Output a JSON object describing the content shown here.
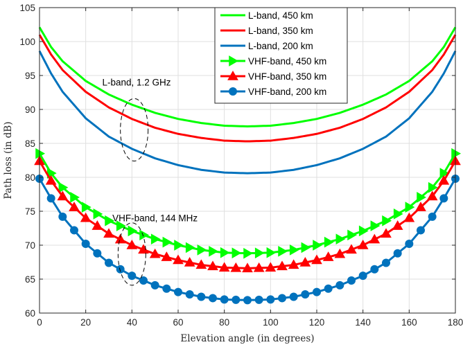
{
  "chart_data": {
    "type": "line",
    "title": "",
    "xlabel": "Elevation angle (in degrees)",
    "ylabel": "Path loss (in dB)",
    "xlim": [
      0,
      180
    ],
    "ylim": [
      60,
      105
    ],
    "xticks": [
      "0",
      "20",
      "40",
      "60",
      "80",
      "100",
      "120",
      "140",
      "160",
      "180"
    ],
    "yticks": [
      "60",
      "65",
      "70",
      "75",
      "80",
      "85",
      "90",
      "95",
      "100",
      "105"
    ],
    "grid": true,
    "legend_position": "top-center",
    "model_points_x": [
      0,
      5,
      10,
      20,
      30,
      40,
      50,
      60,
      70,
      80,
      90,
      100,
      110,
      120,
      130,
      140,
      150,
      160,
      170,
      175,
      180
    ],
    "series": [
      {
        "name": "L-band, 450 km",
        "color": "#00ff00",
        "marker": "none",
        "values": [
          102.1,
          99.2,
          97.1,
          94.2,
          92.2,
          90.7,
          89.5,
          88.6,
          88.0,
          87.6,
          87.5,
          87.6,
          88.0,
          88.6,
          89.5,
          90.7,
          92.2,
          94.2,
          97.1,
          99.2,
          102.1
        ]
      },
      {
        "name": "L-band, 350 km",
        "color": "#ff0000",
        "marker": "none",
        "values": [
          101.0,
          98.1,
          95.8,
          92.6,
          90.3,
          88.6,
          87.3,
          86.4,
          85.8,
          85.4,
          85.3,
          85.4,
          85.8,
          86.4,
          87.3,
          88.6,
          90.3,
          92.6,
          95.8,
          98.1,
          101.0
        ]
      },
      {
        "name": "L-band, 200 km",
        "color": "#0072bd",
        "marker": "none",
        "values": [
          98.6,
          95.3,
          92.6,
          88.7,
          86.0,
          84.2,
          82.8,
          81.8,
          81.1,
          80.7,
          80.6,
          80.7,
          81.1,
          81.8,
          82.8,
          84.2,
          86.0,
          88.7,
          92.6,
          95.3,
          98.6
        ]
      },
      {
        "name": "VHF-band, 450 km",
        "color": "#00ff00",
        "marker": "triangle-right",
        "values": [
          83.5,
          80.6,
          78.5,
          75.6,
          73.6,
          72.1,
          70.9,
          70.0,
          69.3,
          68.9,
          68.8,
          68.9,
          69.3,
          70.0,
          70.9,
          72.1,
          73.6,
          75.6,
          78.5,
          80.6,
          83.5
        ]
      },
      {
        "name": "VHF-band, 350 km",
        "color": "#ff0000",
        "marker": "triangle-up",
        "values": [
          82.4,
          79.5,
          77.2,
          74.0,
          71.7,
          70.0,
          68.7,
          67.8,
          67.1,
          66.7,
          66.6,
          66.7,
          67.1,
          67.8,
          68.7,
          70.0,
          71.7,
          74.0,
          77.2,
          79.5,
          82.4
        ]
      },
      {
        "name": "VHF-band, 200 km",
        "color": "#0072bd",
        "marker": "circle",
        "values": [
          79.8,
          76.9,
          74.2,
          70.2,
          67.4,
          65.5,
          64.1,
          63.1,
          62.4,
          62.0,
          61.9,
          62.0,
          62.4,
          63.1,
          64.1,
          65.5,
          67.4,
          70.2,
          74.2,
          76.9,
          79.8
        ]
      }
    ],
    "annotations": [
      {
        "text": "L-band, 1.2 GHz",
        "x": 42,
        "y": 93.5,
        "ellipse_center": [
          41,
          87
        ],
        "ellipse_radii": [
          6,
          4.6
        ]
      },
      {
        "text": "VHF-band, 144 MHz",
        "x": 50,
        "y": 73.5,
        "ellipse_center": [
          40,
          68.7
        ],
        "ellipse_radii": [
          6,
          4.6
        ]
      }
    ]
  }
}
